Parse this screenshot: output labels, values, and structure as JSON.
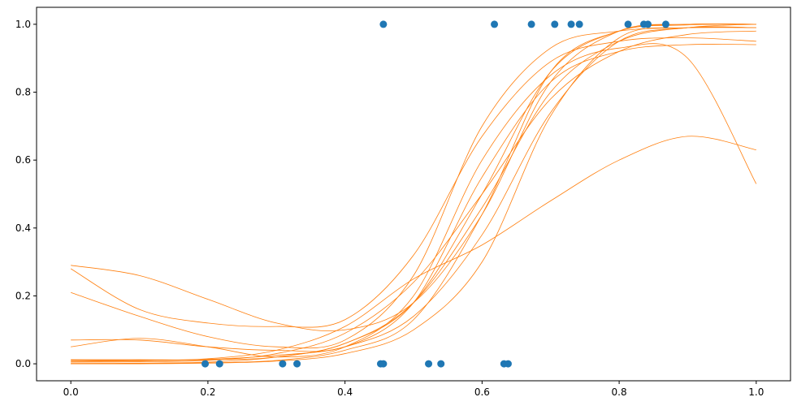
{
  "chart_data": {
    "type": "scatter",
    "title": "",
    "xlabel": "",
    "ylabel": "",
    "xlim": [
      -0.05,
      1.05
    ],
    "ylim": [
      -0.05,
      1.05
    ],
    "grid": false,
    "xticks": [
      0.0,
      0.2,
      0.4,
      0.6,
      0.8,
      1.0
    ],
    "xtick_labels": [
      "0.0",
      "0.2",
      "0.4",
      "0.6",
      "0.8",
      "1.0"
    ],
    "yticks": [
      0.0,
      0.2,
      0.4,
      0.6,
      0.8,
      1.0
    ],
    "ytick_labels": [
      "0.0",
      "0.2",
      "0.4",
      "0.6",
      "0.8",
      "1.0"
    ],
    "colors": {
      "points": "#1f77b4",
      "curves": "#ff7f0e"
    },
    "points": [
      {
        "x": 0.196,
        "y": 0
      },
      {
        "x": 0.217,
        "y": 0
      },
      {
        "x": 0.309,
        "y": 0
      },
      {
        "x": 0.33,
        "y": 0
      },
      {
        "x": 0.452,
        "y": 0
      },
      {
        "x": 0.456,
        "y": 0
      },
      {
        "x": 0.522,
        "y": 0
      },
      {
        "x": 0.54,
        "y": 0
      },
      {
        "x": 0.632,
        "y": 0
      },
      {
        "x": 0.638,
        "y": 0
      },
      {
        "x": 0.456,
        "y": 1
      },
      {
        "x": 0.618,
        "y": 1
      },
      {
        "x": 0.672,
        "y": 1
      },
      {
        "x": 0.706,
        "y": 1
      },
      {
        "x": 0.73,
        "y": 1
      },
      {
        "x": 0.742,
        "y": 1
      },
      {
        "x": 0.813,
        "y": 1
      },
      {
        "x": 0.836,
        "y": 1
      },
      {
        "x": 0.842,
        "y": 1
      },
      {
        "x": 0.868,
        "y": 1
      }
    ],
    "curves": [
      {
        "x": [
          0,
          0.1,
          0.2,
          0.3,
          0.4,
          0.5,
          0.6,
          0.7,
          0.8,
          0.9,
          1.0
        ],
        "y": [
          0.29,
          0.26,
          0.19,
          0.12,
          0.1,
          0.18,
          0.44,
          0.83,
          0.98,
          1.0,
          1.0
        ]
      },
      {
        "x": [
          0,
          0.1,
          0.2,
          0.3,
          0.4,
          0.5,
          0.6,
          0.7,
          0.8,
          0.9,
          1.0
        ],
        "y": [
          0.28,
          0.16,
          0.12,
          0.11,
          0.13,
          0.32,
          0.67,
          0.89,
          0.95,
          0.96,
          0.95
        ]
      },
      {
        "x": [
          0,
          0.1,
          0.2,
          0.3,
          0.4,
          0.5,
          0.6,
          0.7,
          0.8,
          0.9,
          1.0
        ],
        "y": [
          0.21,
          0.14,
          0.08,
          0.05,
          0.07,
          0.26,
          0.7,
          0.93,
          0.98,
          0.99,
          0.99
        ]
      },
      {
        "x": [
          0,
          0.1,
          0.2,
          0.3,
          0.4,
          0.5,
          0.6,
          0.7,
          0.8,
          0.9,
          1.0
        ],
        "y": [
          0.07,
          0.07,
          0.05,
          0.04,
          0.05,
          0.18,
          0.55,
          0.83,
          0.92,
          0.94,
          0.94
        ]
      },
      {
        "x": [
          0,
          0.1,
          0.2,
          0.3,
          0.4,
          0.5,
          0.6,
          0.7,
          0.8,
          0.9,
          1.0
        ],
        "y": [
          0.05,
          0.075,
          0.05,
          0.02,
          0.05,
          0.2,
          0.6,
          0.85,
          0.93,
          0.9,
          0.53
        ]
      },
      {
        "x": [
          0,
          0.1,
          0.2,
          0.3,
          0.4,
          0.5,
          0.6,
          0.7,
          0.8,
          0.9,
          1.0
        ],
        "y": [
          0.01,
          0.01,
          0.015,
          0.04,
          0.11,
          0.25,
          0.35,
          0.48,
          0.6,
          0.67,
          0.63
        ]
      },
      {
        "x": [
          0,
          0.1,
          0.2,
          0.3,
          0.4,
          0.5,
          0.6,
          0.7,
          0.8,
          0.9,
          1.0
        ],
        "y": [
          0.005,
          0.006,
          0.01,
          0.03,
          0.09,
          0.24,
          0.5,
          0.78,
          0.92,
          0.97,
          0.98
        ]
      },
      {
        "x": [
          0,
          0.1,
          0.2,
          0.3,
          0.4,
          0.5,
          0.6,
          0.7,
          0.8,
          0.9,
          1.0
        ],
        "y": [
          0.001,
          0.002,
          0.005,
          0.02,
          0.06,
          0.18,
          0.5,
          0.86,
          0.98,
          1.0,
          1.0
        ]
      },
      {
        "x": [
          0,
          0.1,
          0.2,
          0.3,
          0.4,
          0.5,
          0.6,
          0.7,
          0.8,
          0.9,
          1.0
        ],
        "y": [
          0.0,
          0.001,
          0.003,
          0.01,
          0.04,
          0.13,
          0.44,
          0.86,
          0.98,
          0.998,
          1.0
        ]
      },
      {
        "x": [
          0,
          0.1,
          0.2,
          0.3,
          0.4,
          0.5,
          0.6,
          0.7,
          0.8,
          0.9,
          1.0
        ],
        "y": [
          0.012,
          0.012,
          0.012,
          0.02,
          0.06,
          0.18,
          0.46,
          0.8,
          0.95,
          0.99,
          0.99
        ]
      },
      {
        "x": [
          0,
          0.1,
          0.2,
          0.3,
          0.4,
          0.5,
          0.6,
          0.7,
          0.8,
          0.9,
          1.0
        ],
        "y": [
          0.0,
          0.0,
          0.002,
          0.008,
          0.03,
          0.1,
          0.3,
          0.73,
          0.96,
          0.99,
          0.99
        ]
      },
      {
        "x": [
          0,
          0.1,
          0.2,
          0.3,
          0.4,
          0.5,
          0.6,
          0.7,
          0.8,
          0.9,
          1.0
        ],
        "y": [
          0.007,
          0.009,
          0.013,
          0.025,
          0.05,
          0.14,
          0.38,
          0.74,
          0.95,
          0.99,
          1.0
        ]
      }
    ]
  }
}
